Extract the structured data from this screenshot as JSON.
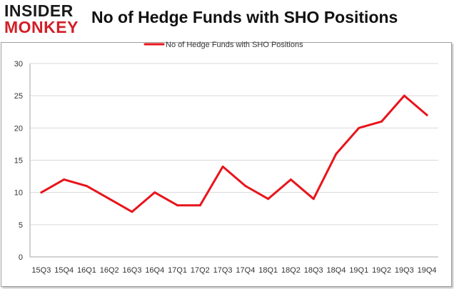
{
  "brand": {
    "line1": "INSIDER",
    "line2": "MONKEY"
  },
  "colors": {
    "series": "#e8141b",
    "grid": "#d9d9d9",
    "brand_red": "#d11f26"
  },
  "chart_data": {
    "type": "line",
    "title": "No of Hedge Funds with SHO Positions",
    "xlabel": "",
    "ylabel": "",
    "legend_position": "top-center",
    "grid": true,
    "ylim": [
      0,
      30
    ],
    "yticks": [
      0,
      5,
      10,
      15,
      20,
      25,
      30
    ],
    "categories": [
      "15Q3",
      "15Q4",
      "16Q1",
      "16Q2",
      "16Q3",
      "16Q4",
      "17Q1",
      "17Q2",
      "17Q3",
      "17Q4",
      "18Q1",
      "18Q2",
      "18Q3",
      "18Q4",
      "19Q1",
      "19Q2",
      "19Q3",
      "19Q4"
    ],
    "series": [
      {
        "name": "No of Hedge Funds with SHO Positions",
        "values": [
          10,
          12,
          11,
          9,
          7,
          10,
          8,
          8,
          14,
          11,
          9,
          12,
          9,
          16,
          20,
          21,
          25,
          22
        ]
      }
    ]
  }
}
